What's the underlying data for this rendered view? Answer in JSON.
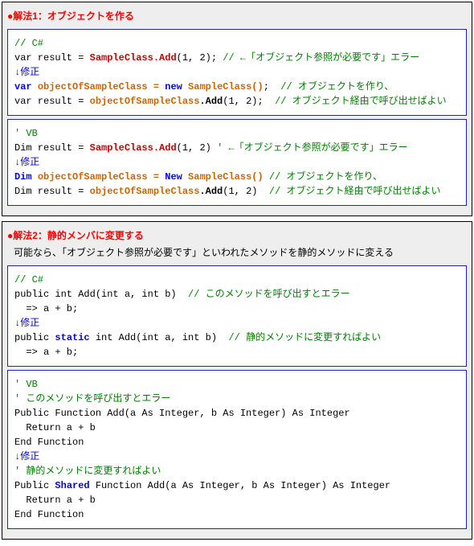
{
  "s1": {
    "title": "●解法1：オブジェクトを作る",
    "cb1": {
      "l1a": "// C#",
      "l2a": "var result = ",
      "l2b": "SampleClass.Add",
      "l2c": "(1, 2); ",
      "l2d": "// ←「オブジェクト参照が必要です」エラー",
      "l3a": "↓修正",
      "l4a": "var ",
      "l4b": "objectOfSampleClass = ",
      "l4c": "new",
      "l4d": " SampleClass()",
      "l4e": "; ",
      "l4f": " // オブジェクトを作り、",
      "l5a": "var result = ",
      "l5b": "objectOfSampleClass",
      "l5c": ".Add",
      "l5d": "(1, 2); ",
      "l5e": " // オブジェクト経由で呼び出せばよい"
    },
    "cb2": {
      "l1a": "' VB",
      "l2a": "Dim result = ",
      "l2b": "SampleClass.Add",
      "l2c": "(1, 2) ",
      "l2d": "' ←「オブジェクト参照が必要です」エラー",
      "l3a": "↓修正",
      "l4a": "Dim ",
      "l4b": "objectOfSampleClass = ",
      "l4c": "New",
      "l4d": " SampleClass()",
      "l4e": " // オブジェクトを作り、",
      "l5a": "Dim result = ",
      "l5b": "objectOfSampleClass",
      "l5c": ".Add",
      "l5d": "(1, 2) ",
      "l5e": " // オブジェクト経由で呼び出せばよい"
    }
  },
  "s2": {
    "title": "●解法2：静的メンバに変更する",
    "subtitle": "可能なら、「オブジェクト参照が必要です」といわれたメソッドを静的メソッドに変える",
    "cb1": {
      "l1a": "// C#",
      "l2a": "public int Add(int a, int b) ",
      "l2b": " // このメソッドを呼び出すとエラー",
      "l3a": "  => a + b;",
      "l4a": "↓修正",
      "l5a": "public ",
      "l5b": "static",
      "l5c": " int Add(int a, int b) ",
      "l5d": " // 静的メソッドに変更すればよい",
      "l6a": "  => a + b;"
    },
    "cb2": {
      "l1a": "' VB",
      "l2a": "' このメソッドを呼び出すとエラー",
      "l3a": "Public Function Add(a As Integer, b As Integer) As Integer",
      "l4a": "  Return a + b",
      "l5a": "End Function",
      "l6a": "↓修正",
      "l7a": "' 静的メソッドに変更すればよい",
      "l8a": "Public ",
      "l8b": "Shared",
      "l8c": " Function Add(a As Integer, b As Integer) As Integer",
      "l9a": "  Return a + b",
      "l10a": "End Function"
    }
  }
}
